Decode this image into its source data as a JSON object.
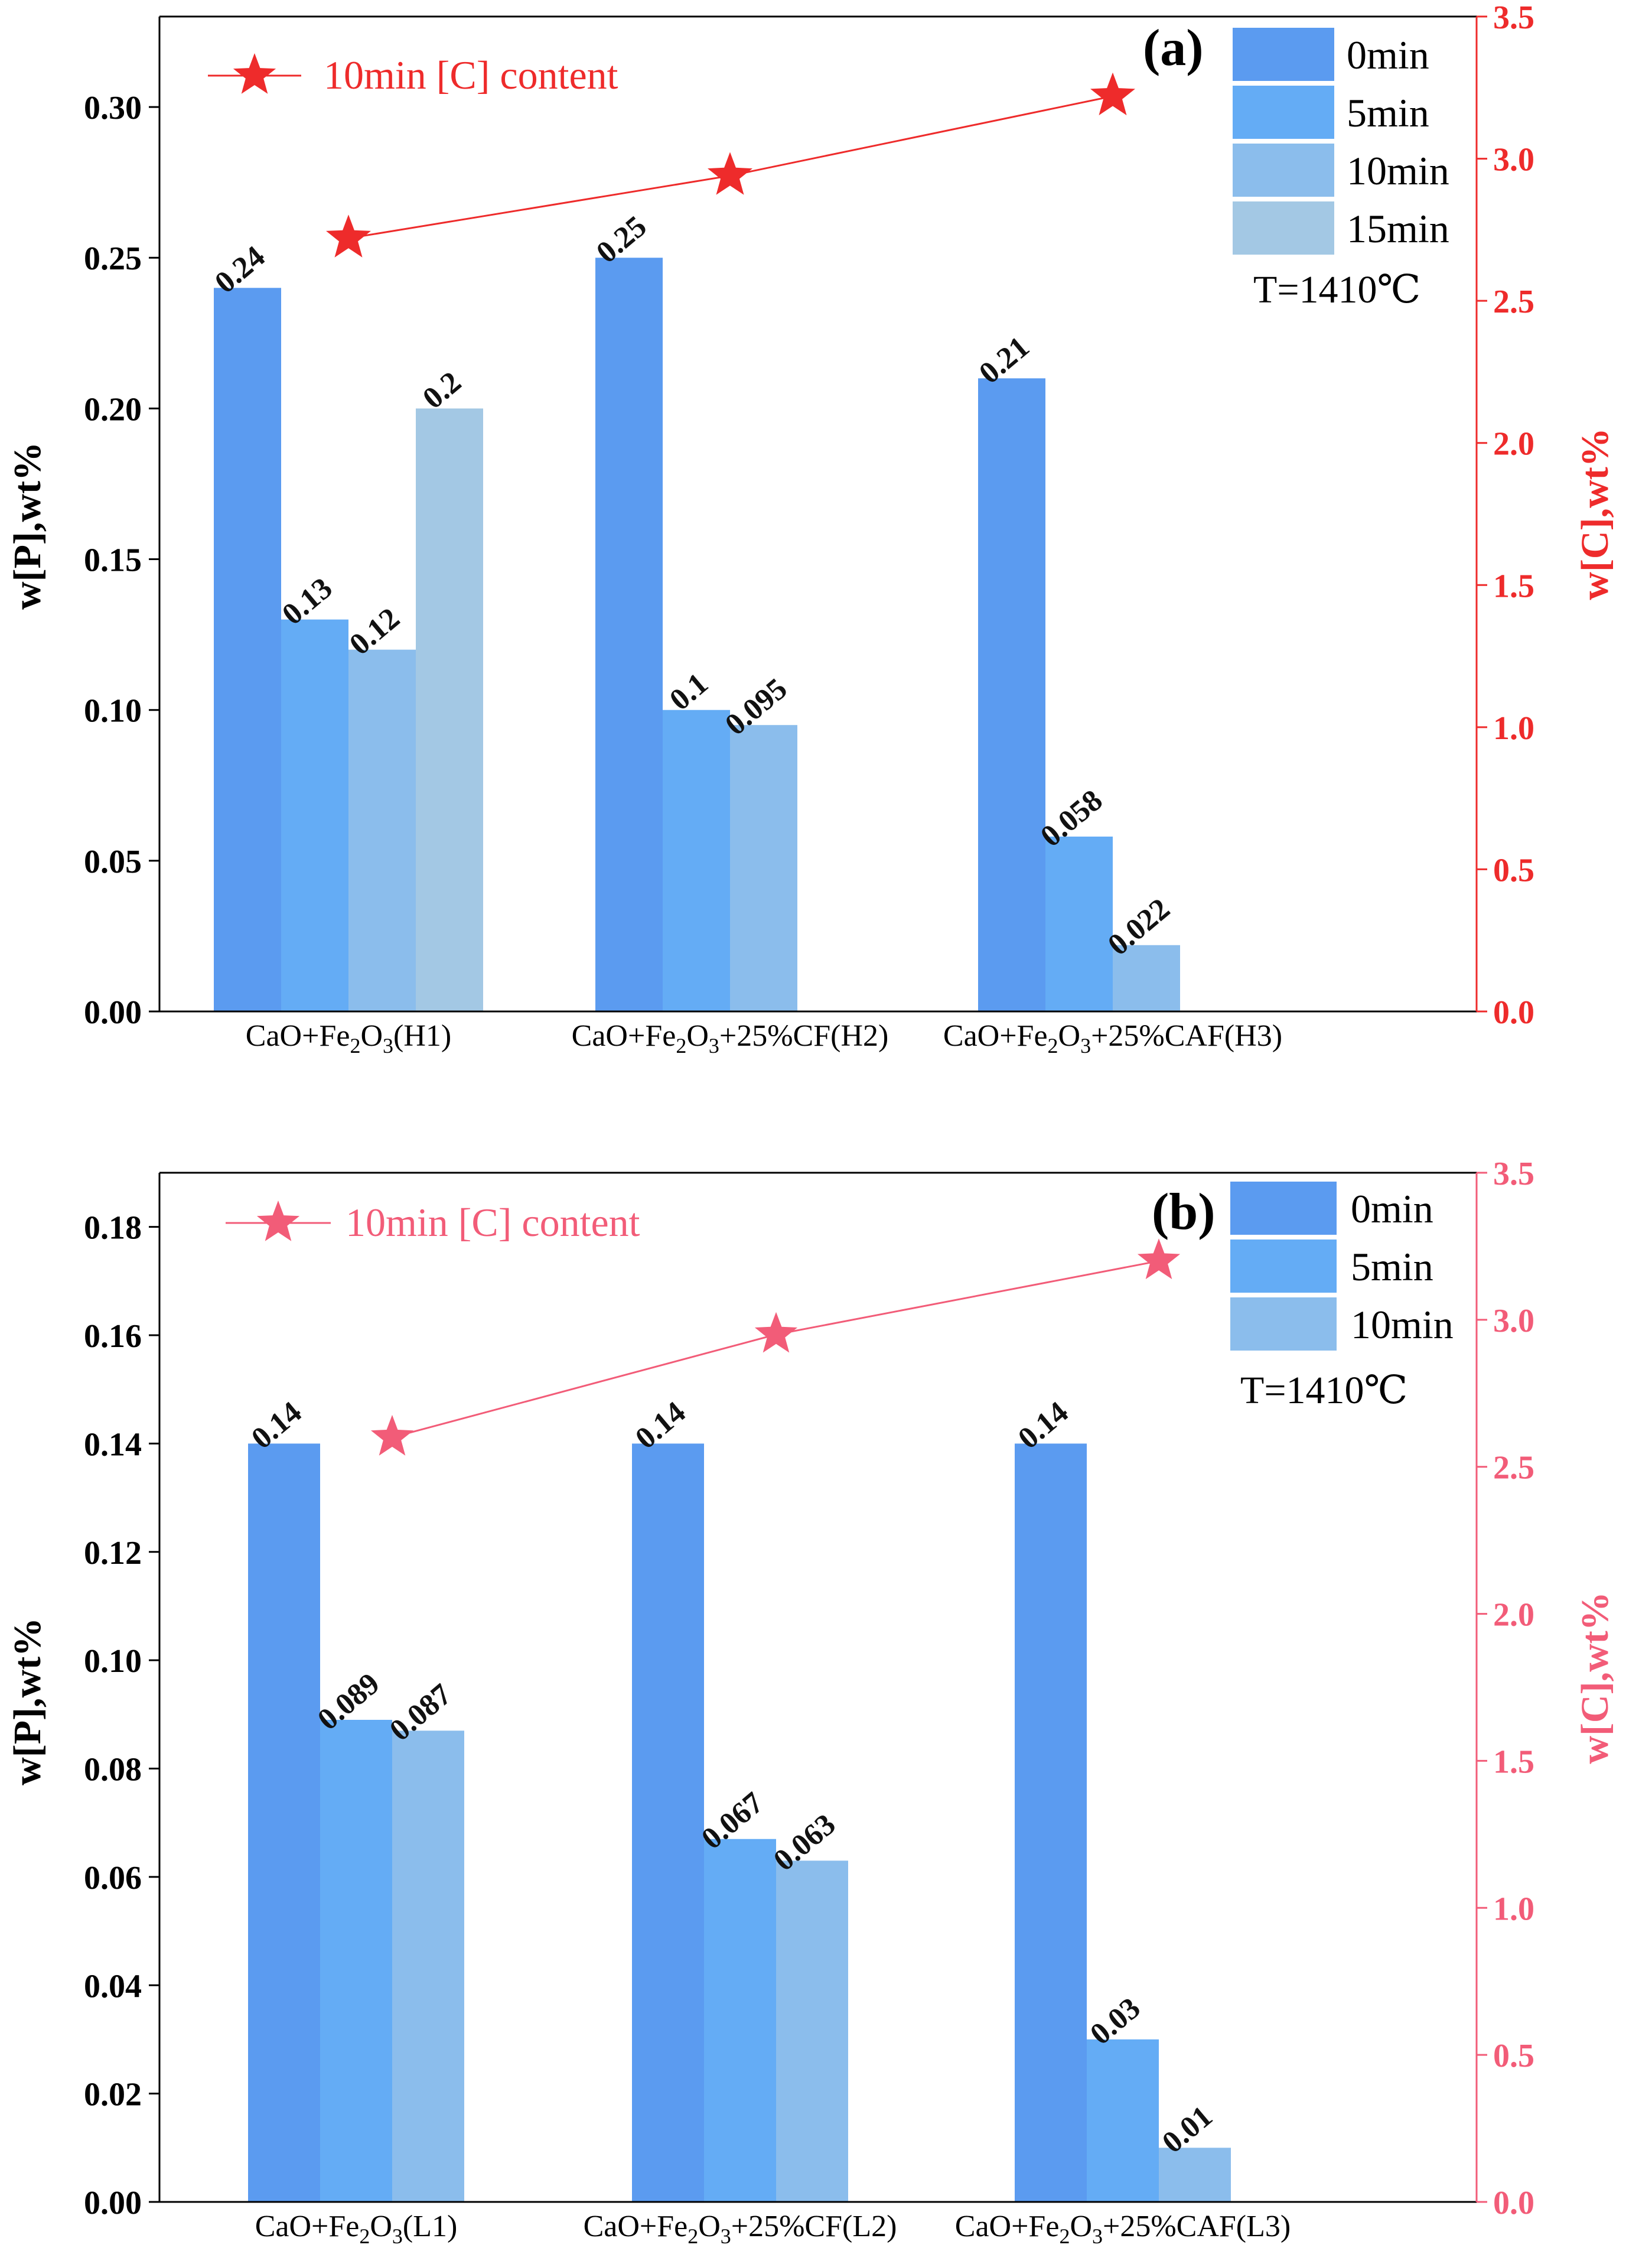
{
  "chart_data": [
    {
      "panel_label": "(a)",
      "type": "bar",
      "categories": [
        {
          "base": "CaO+Fe",
          "sub1": "2",
          "mid": "O",
          "sub2": "3",
          "tail": "(H1)"
        },
        {
          "base": "CaO+Fe",
          "sub1": "2",
          "mid": "O",
          "sub2": "3",
          "tail": "+25%CF(H2)"
        },
        {
          "base": "CaO+Fe",
          "sub1": "2",
          "mid": "O",
          "sub2": "3",
          "tail": "+25%CAF(H3)"
        }
      ],
      "series": [
        {
          "name": "0min",
          "color": "#5b9bf0",
          "values": [
            0.24,
            0.25,
            0.21
          ],
          "labels": [
            "0.24",
            "0.25",
            "0.21"
          ]
        },
        {
          "name": "5min",
          "color": "#64acf5",
          "values": [
            0.13,
            0.1,
            0.058
          ],
          "labels": [
            "0.13",
            "0.1",
            "0.058"
          ]
        },
        {
          "name": "10min",
          "color": "#8bbdec",
          "values": [
            0.12,
            0.095,
            0.022
          ],
          "labels": [
            "0.12",
            "0.095",
            "0.022"
          ]
        },
        {
          "name": "15min",
          "color": "#a3c8e4",
          "values": [
            0.2,
            null,
            null
          ],
          "labels": [
            "0.2",
            "",
            ""
          ]
        }
      ],
      "line_series": {
        "name": "10min [C] content",
        "color": "#ee2b2b",
        "values": [
          2.72,
          2.94,
          3.22
        ]
      },
      "ylabel": "w[P],wt%",
      "y2label": "w[C],wt%",
      "ylim": [
        0,
        0.33
      ],
      "yticks": [
        "0.00",
        "0.05",
        "0.10",
        "0.15",
        "0.20",
        "0.25",
        "0.30"
      ],
      "y2lim": [
        0,
        3.5
      ],
      "y2ticks": [
        "0.0",
        "0.5",
        "1.0",
        "1.5",
        "2.0",
        "2.5",
        "3.0",
        "3.5"
      ],
      "annotation": "T=1410℃"
    },
    {
      "panel_label": "(b)",
      "type": "bar",
      "categories": [
        {
          "base": "CaO+Fe",
          "sub1": "2",
          "mid": "O",
          "sub2": "3",
          "tail": "(L1)"
        },
        {
          "base": "CaO+Fe",
          "sub1": "2",
          "mid": "O",
          "sub2": "3",
          "tail": "+25%CF(L2)"
        },
        {
          "base": "CaO+Fe",
          "sub1": "2",
          "mid": "O",
          "sub2": "3",
          "tail": "+25%CAF(L3)"
        }
      ],
      "series": [
        {
          "name": "0min",
          "color": "#5b9bf0",
          "values": [
            0.14,
            0.14,
            0.14
          ],
          "labels": [
            "0.14",
            "0.14",
            "0.14"
          ]
        },
        {
          "name": "5min",
          "color": "#64acf5",
          "values": [
            0.089,
            0.067,
            0.03
          ],
          "labels": [
            "0.089",
            "0.067",
            "0.03"
          ]
        },
        {
          "name": "10min",
          "color": "#8bbdec",
          "values": [
            0.087,
            0.063,
            0.01
          ],
          "labels": [
            "0.087",
            "0.063",
            "0.01"
          ]
        }
      ],
      "line_series": {
        "name": "10min [C] content",
        "color": "#f25c78",
        "values": [
          2.6,
          2.95,
          3.2
        ]
      },
      "ylabel": "w[P],wt%",
      "y2label": "w[C],wt%",
      "ylim": [
        0,
        0.19
      ],
      "yticks": [
        "0.00",
        "0.02",
        "0.04",
        "0.06",
        "0.08",
        "0.10",
        "0.12",
        "0.14",
        "0.16",
        "0.18"
      ],
      "y2lim": [
        0,
        3.5
      ],
      "y2ticks": [
        "0.0",
        "0.5",
        "1.0",
        "1.5",
        "2.0",
        "2.5",
        "3.0",
        "3.5"
      ],
      "annotation": "T=1410℃"
    }
  ]
}
